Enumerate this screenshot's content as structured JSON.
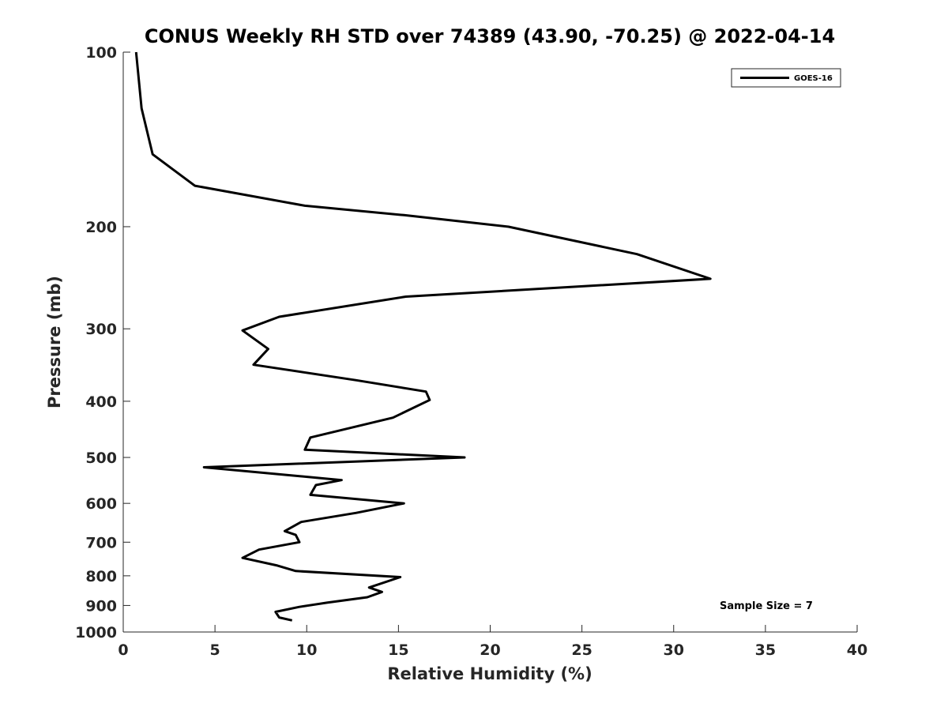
{
  "chart_data": {
    "type": "line",
    "title": "CONUS Weekly RH STD over 74389 (43.90, -70.25) @ 2022-04-14",
    "xlabel": "Relative Humidity (%)",
    "ylabel": "Pressure (mb)",
    "xlim": [
      0,
      40
    ],
    "ylim": [
      100,
      1000
    ],
    "yscale": "log",
    "yreversed": true,
    "xticks": [
      0,
      5,
      10,
      15,
      20,
      25,
      30,
      35,
      40
    ],
    "yticks": [
      100,
      200,
      300,
      400,
      500,
      600,
      700,
      800,
      900,
      1000
    ],
    "grid": false,
    "legend_position": "top-right",
    "annotation": "Sample Size = 7",
    "line_color": "#000000",
    "series": [
      {
        "name": "GOES-16",
        "x": [
          0.7,
          1.0,
          1.6,
          3.9,
          9.9,
          15.3,
          21.0,
          28.0,
          32.0,
          15.4,
          8.5,
          6.5,
          7.9,
          7.1,
          12.7,
          16.5,
          16.7,
          14.7,
          10.2,
          9.9,
          18.6,
          4.4,
          11.9,
          10.5,
          10.2,
          15.3,
          12.7,
          9.7,
          8.8,
          9.4,
          9.6,
          7.4,
          6.5,
          8.4,
          9.4,
          15.1,
          13.4,
          14.1,
          13.3,
          11.1,
          9.6,
          8.3,
          8.5,
          9.2
        ],
        "y": [
          100,
          125,
          150,
          170,
          184,
          191,
          200,
          223,
          246,
          264,
          286,
          302,
          325,
          346,
          368,
          385,
          398,
          427,
          462,
          485,
          500,
          520,
          547,
          558,
          580,
          600,
          623,
          646,
          670,
          680,
          700,
          721,
          745,
          768,
          785,
          804,
          838,
          853,
          871,
          890,
          905,
          923,
          944,
          955
        ]
      }
    ]
  }
}
